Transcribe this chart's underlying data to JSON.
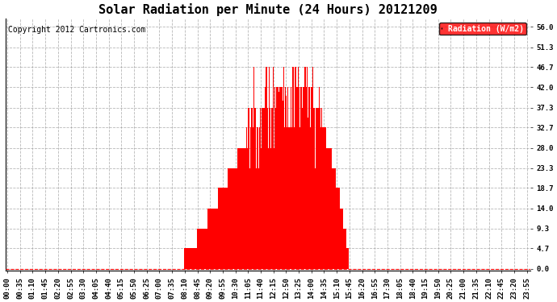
{
  "title": "Solar Radiation per Minute (24 Hours) 20121209",
  "copyright_text": "Copyright 2012 Cartronics.com",
  "legend_label": "Radiation (W/m2)",
  "ylabel_ticks": [
    0.0,
    4.7,
    9.3,
    14.0,
    18.7,
    23.3,
    28.0,
    32.7,
    37.3,
    42.0,
    46.7,
    51.3,
    56.0
  ],
  "bar_color": "#ff0000",
  "bg_color": "#ffffff",
  "grid_color": "#999999",
  "legend_bg": "#ff0000",
  "legend_text_color": "#ffffff",
  "title_fontsize": 11,
  "tick_fontsize": 6.5,
  "copyright_fontsize": 7
}
